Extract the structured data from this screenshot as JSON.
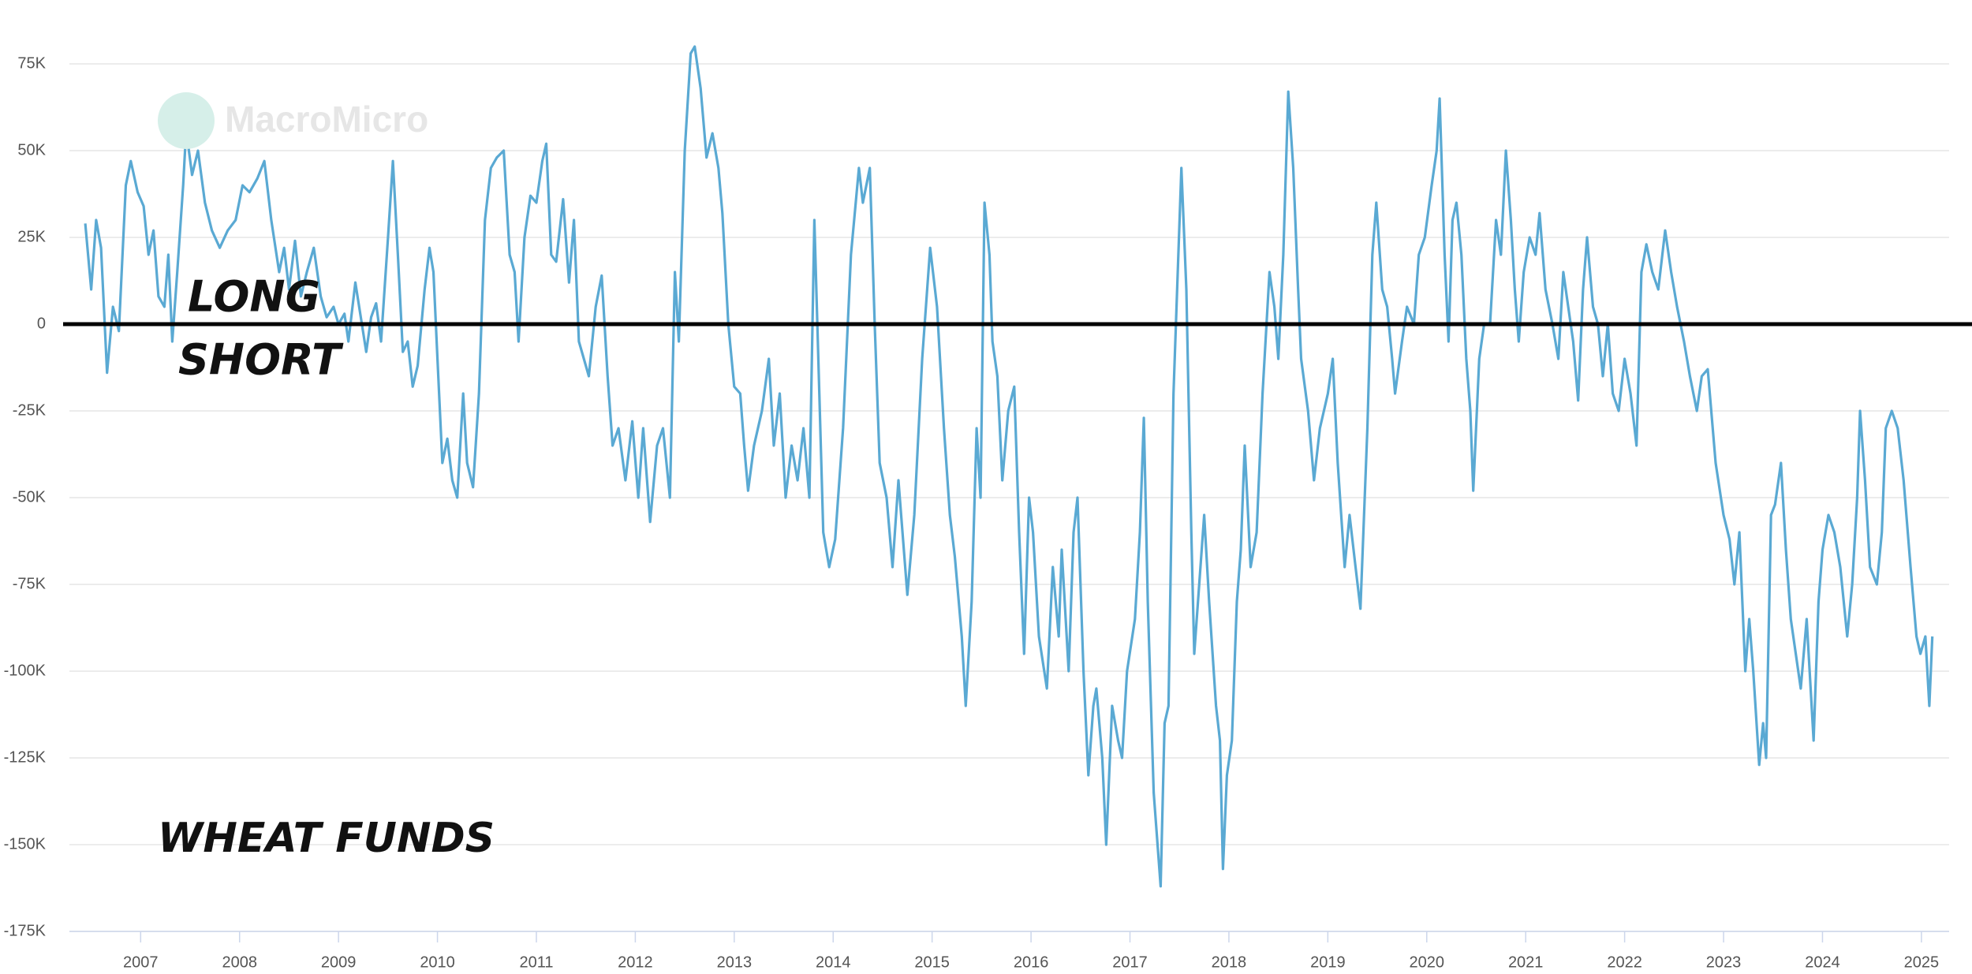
{
  "chart_data": {
    "type": "line",
    "watermark": "MacroMicro",
    "annotations": [
      "LONG",
      "SHORT",
      "WHEAT FUNDS"
    ],
    "xlim": [
      2006.28,
      2025.28
    ],
    "xticks": [
      2007,
      2008,
      2009,
      2010,
      2011,
      2012,
      2013,
      2014,
      2015,
      2016,
      2017,
      2018,
      2019,
      2020,
      2021,
      2022,
      2023,
      2024,
      2025
    ],
    "ylim": [
      -175,
      75
    ],
    "yticks": [
      {
        "value": 75,
        "label": "75K"
      },
      {
        "value": 50,
        "label": "50K"
      },
      {
        "value": 25,
        "label": "25K"
      },
      0,
      {
        "value": -25,
        "label": "-25K"
      },
      {
        "value": -50,
        "label": "-50K"
      },
      {
        "value": -75,
        "label": "-75K"
      },
      {
        "value": -100,
        "label": "-100K"
      },
      {
        "value": -125,
        "label": "-125K"
      },
      {
        "value": -150,
        "label": "-150K"
      },
      {
        "value": -175,
        "label": "-175K"
      }
    ],
    "grid": true,
    "zero_line": true,
    "color": "#5aa9d3",
    "x": [
      2006.44,
      2006.5,
      2006.55,
      2006.6,
      2006.66,
      2006.72,
      2006.78,
      2006.85,
      2006.9,
      2006.97,
      2007.03,
      2007.08,
      2007.13,
      2007.18,
      2007.24,
      2007.28,
      2007.32,
      2007.37,
      2007.43,
      2007.46,
      2007.52,
      2007.58,
      2007.65,
      2007.72,
      2007.8,
      2007.88,
      2007.96,
      2008.03,
      2008.1,
      2008.18,
      2008.25,
      2008.32,
      2008.4,
      2008.45,
      2008.5,
      2008.56,
      2008.62,
      2008.68,
      2008.75,
      2008.82,
      2008.88,
      2008.95,
      2009.0,
      2009.06,
      2009.1,
      2009.17,
      2009.22,
      2009.28,
      2009.33,
      2009.38,
      2009.43,
      2009.5,
      2009.55,
      2009.6,
      2009.65,
      2009.7,
      2009.75,
      2009.8,
      2009.87,
      2009.92,
      2009.96,
      2010.0,
      2010.05,
      2010.1,
      2010.15,
      2010.2,
      2010.26,
      2010.3,
      2010.36,
      2010.42,
      2010.48,
      2010.54,
      2010.6,
      2010.67,
      2010.73,
      2010.78,
      2010.82,
      2010.88,
      2010.94,
      2011.0,
      2011.06,
      2011.1,
      2011.15,
      2011.2,
      2011.27,
      2011.33,
      2011.38,
      2011.43,
      2011.48,
      2011.53,
      2011.6,
      2011.66,
      2011.72,
      2011.77,
      2011.83,
      2011.9,
      2011.97,
      2012.03,
      2012.08,
      2012.15,
      2012.22,
      2012.28,
      2012.35,
      2012.4,
      2012.44,
      2012.5,
      2012.56,
      2012.6,
      2012.66,
      2012.72,
      2012.78,
      2012.84,
      2012.88,
      2012.94,
      2013.0,
      2013.06,
      2013.1,
      2013.14,
      2013.2,
      2013.28,
      2013.35,
      2013.4,
      2013.46,
      2013.52,
      2013.58,
      2013.64,
      2013.7,
      2013.76,
      2013.81,
      2013.86,
      2013.9,
      2013.96,
      2014.02,
      2014.1,
      2014.18,
      2014.26,
      2014.3,
      2014.37,
      2014.42,
      2014.47,
      2014.54,
      2014.6,
      2014.66,
      2014.75,
      2014.82,
      2014.9,
      2014.98,
      2015.05,
      2015.12,
      2015.18,
      2015.23,
      2015.3,
      2015.34,
      2015.4,
      2015.45,
      2015.49,
      2015.53,
      2015.58,
      2015.61,
      2015.66,
      2015.71,
      2015.77,
      2015.83,
      2015.88,
      2015.93,
      2015.98,
      2016.02,
      2016.08,
      2016.16,
      2016.22,
      2016.28,
      2016.31,
      2016.38,
      2016.43,
      2016.47,
      2016.53,
      2016.58,
      2016.63,
      2016.66,
      2016.72,
      2016.76,
      2016.82,
      2016.88,
      2016.92,
      2016.97,
      2017.05,
      2017.1,
      2017.14,
      2017.18,
      2017.24,
      2017.31,
      2017.35,
      2017.39,
      2017.44,
      2017.52,
      2017.57,
      2017.62,
      2017.65,
      2017.7,
      2017.75,
      2017.8,
      2017.87,
      2017.91,
      2017.94,
      2017.98,
      2018.03,
      2018.08,
      2018.12,
      2018.16,
      2018.22,
      2018.28,
      2018.34,
      2018.41,
      2018.46,
      2018.5,
      2018.55,
      2018.6,
      2018.65,
      2018.7,
      2018.73,
      2018.8,
      2018.86,
      2018.92,
      2019.0,
      2019.05,
      2019.1,
      2019.17,
      2019.22,
      2019.28,
      2019.33,
      2019.4,
      2019.45,
      2019.49,
      2019.55,
      2019.6,
      2019.65,
      2019.68,
      2019.75,
      2019.8,
      2019.87,
      2019.92,
      2019.98,
      2020.05,
      2020.1,
      2020.13,
      2020.18,
      2020.22,
      2020.26,
      2020.3,
      2020.35,
      2020.4,
      2020.44,
      2020.47,
      2020.53,
      2020.58,
      2020.64,
      2020.7,
      2020.75,
      2020.8,
      2020.85,
      2020.89,
      2020.93,
      2020.98,
      2021.04,
      2021.1,
      2021.14,
      2021.2,
      2021.27,
      2021.33,
      2021.38,
      2021.43,
      2021.48,
      2021.53,
      2021.58,
      2021.62,
      2021.68,
      2021.73,
      2021.78,
      2021.83,
      2021.88,
      2021.94,
      2022.0,
      2022.06,
      2022.12,
      2022.17,
      2022.22,
      2022.28,
      2022.34,
      2022.41,
      2022.47,
      2022.53,
      2022.6,
      2022.66,
      2022.73,
      2022.78,
      2022.84,
      2022.92,
      2023.0,
      2023.06,
      2023.11,
      2023.16,
      2023.22,
      2023.26,
      2023.3,
      2023.36,
      2023.4,
      2023.43,
      2023.48,
      2023.52,
      2023.58,
      2023.63,
      2023.68,
      2023.73,
      2023.78,
      2023.84,
      2023.91,
      2023.96,
      2024.0,
      2024.06,
      2024.12,
      2024.18,
      2024.25,
      2024.3,
      2024.35,
      2024.38,
      2024.43,
      2024.48,
      2024.55,
      2024.6,
      2024.64,
      2024.7,
      2024.76,
      2024.82,
      2024.89,
      2024.95,
      2024.99,
      2025.04,
      2025.08,
      2025.11
    ],
    "values": [
      29,
      10,
      30,
      22,
      -14,
      5,
      -2,
      40,
      47,
      38,
      34,
      20,
      27,
      8,
      5,
      20,
      -5,
      15,
      40,
      56,
      43,
      50,
      35,
      27,
      22,
      27,
      30,
      40,
      38,
      42,
      47,
      30,
      15,
      22,
      10,
      24,
      8,
      15,
      22,
      8,
      2,
      5,
      0,
      3,
      -5,
      12,
      3,
      -8,
      2,
      6,
      -5,
      25,
      47,
      20,
      -8,
      -5,
      -18,
      -12,
      10,
      22,
      15,
      -10,
      -40,
      -33,
      -45,
      -50,
      -20,
      -40,
      -47,
      -20,
      30,
      45,
      48,
      50,
      20,
      15,
      -5,
      25,
      37,
      35,
      47,
      52,
      20,
      18,
      36,
      12,
      30,
      -5,
      -10,
      -15,
      5,
      14,
      -15,
      -35,
      -30,
      -45,
      -28,
      -50,
      -30,
      -57,
      -35,
      -30,
      -50,
      15,
      -5,
      50,
      78,
      80,
      68,
      48,
      55,
      45,
      32,
      0,
      -18,
      -20,
      -35,
      -48,
      -35,
      -25,
      -10,
      -35,
      -20,
      -50,
      -35,
      -45,
      -30,
      -50,
      30,
      -20,
      -60,
      -70,
      -62,
      -30,
      20,
      45,
      35,
      45,
      0,
      -40,
      -50,
      -70,
      -45,
      -78,
      -55,
      -10,
      22,
      5,
      -30,
      -55,
      -67,
      -90,
      -110,
      -80,
      -30,
      -50,
      35,
      20,
      -5,
      -15,
      -45,
      -25,
      -18,
      -60,
      -95,
      -50,
      -60,
      -90,
      -105,
      -70,
      -90,
      -65,
      -100,
      -60,
      -50,
      -100,
      -130,
      -110,
      -105,
      -125,
      -150,
      -110,
      -120,
      -125,
      -100,
      -85,
      -60,
      -27,
      -80,
      -135,
      -162,
      -115,
      -110,
      -20,
      45,
      10,
      -60,
      -95,
      -75,
      -55,
      -80,
      -110,
      -120,
      -157,
      -130,
      -120,
      -80,
      -65,
      -35,
      -70,
      -60,
      -20,
      15,
      5,
      -10,
      20,
      67,
      45,
      10,
      -10,
      -25,
      -45,
      -30,
      -20,
      -10,
      -40,
      -70,
      -55,
      -70,
      -82,
      -30,
      20,
      35,
      10,
      5,
      -10,
      -20,
      -5,
      5,
      0,
      20,
      25,
      40,
      50,
      65,
      20,
      -5,
      30,
      35,
      20,
      -10,
      -25,
      -48,
      -10,
      0,
      0,
      30,
      20,
      50,
      30,
      10,
      -5,
      15,
      25,
      20,
      32,
      10,
      0,
      -10,
      15,
      5,
      -5,
      -22,
      10,
      25,
      5,
      0,
      -15,
      0,
      -20,
      -25,
      -10,
      -20,
      -35,
      15,
      23,
      15,
      10,
      27,
      15,
      5,
      -5,
      -15,
      -25,
      -15,
      -13,
      -40,
      -55,
      -62,
      -75,
      -60,
      -100,
      -85,
      -100,
      -127,
      -115,
      -125,
      -55,
      -52,
      -40,
      -65,
      -85,
      -95,
      -105,
      -85,
      -120,
      -80,
      -65,
      -55,
      -60,
      -70,
      -90,
      -75,
      -50,
      -25,
      -45,
      -70,
      -75,
      -60,
      -30,
      -25,
      -30,
      -45,
      -70,
      -90,
      -95,
      -90,
      -110,
      -90
    ]
  }
}
